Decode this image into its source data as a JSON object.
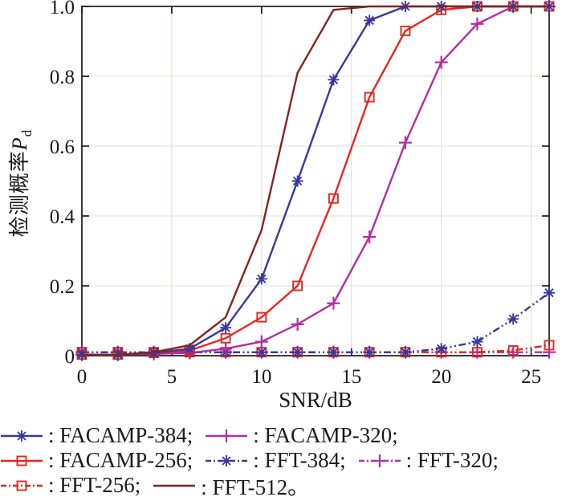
{
  "figure": {
    "xlabel": "SNR/dB",
    "ylabel": {
      "cn": "检测概率",
      "var": "P",
      "sub": "d"
    }
  },
  "chart_data": {
    "type": "line",
    "title": "",
    "xlabel": "SNR/dB",
    "ylabel": "检测概率Pd",
    "x": [
      0,
      2,
      4,
      6,
      8,
      10,
      12,
      14,
      16,
      18,
      20,
      22,
      24,
      26
    ],
    "xlim": [
      0,
      26
    ],
    "ylim": [
      0,
      1
    ],
    "xticks": [
      0,
      5,
      10,
      15,
      20,
      25
    ],
    "xtick_labels": [
      "0",
      "5",
      "10",
      "15",
      "20",
      "25"
    ],
    "yticks": [
      0,
      0.2,
      0.4,
      0.6,
      0.8,
      1
    ],
    "ytick_labels": [
      "0",
      "0.2",
      "0.4",
      "0.6",
      "0.8",
      "1.0"
    ],
    "grid": true,
    "legend_position": "below-chart",
    "colors": {
      "blue": "#38389B",
      "red": "#E6261F",
      "magenta": "#B12FA5",
      "maroon": "#83241F",
      "grid": "#E7DDDB",
      "axis": "#1a1a1a"
    },
    "series": [
      {
        "name": "FFT-320",
        "color": "#B12FA5",
        "style": "dashdot",
        "marker": "plus",
        "values": [
          0.01,
          0.01,
          0.01,
          0.01,
          0.01,
          0.01,
          0.01,
          0.01,
          0.01,
          0.01,
          0.01,
          0.01,
          0.01,
          0.01
        ]
      },
      {
        "name": "FFT-256",
        "color": "#E6261F",
        "style": "dashdot",
        "marker": "square",
        "values": [
          0.01,
          0.01,
          0.01,
          0.01,
          0.01,
          0.01,
          0.01,
          0.01,
          0.01,
          0.01,
          0.01,
          0.01,
          0.015,
          0.03
        ]
      },
      {
        "name": "FFT-384",
        "color": "#38389B",
        "style": "dashdot",
        "marker": "asterisk",
        "values": [
          0.01,
          0.01,
          0.01,
          0.01,
          0.01,
          0.01,
          0.01,
          0.01,
          0.01,
          0.01,
          0.02,
          0.04,
          0.105,
          0.18
        ]
      },
      {
        "name": "FACAMP-320",
        "color": "#B12FA5",
        "style": "solid",
        "marker": "plus",
        "values": [
          0.003,
          0.003,
          0.005,
          0.008,
          0.02,
          0.04,
          0.09,
          0.15,
          0.34,
          0.61,
          0.84,
          0.95,
          1.0,
          1.0
        ]
      },
      {
        "name": "FACAMP-256",
        "color": "#E6261F",
        "style": "solid",
        "marker": "square",
        "values": [
          0.003,
          0.003,
          0.008,
          0.015,
          0.05,
          0.11,
          0.2,
          0.45,
          0.74,
          0.93,
          0.99,
          1.0,
          1.0,
          1.0
        ]
      },
      {
        "name": "FACAMP-384",
        "color": "#38389B",
        "style": "solid",
        "marker": "asterisk",
        "values": [
          0.003,
          0.003,
          0.008,
          0.02,
          0.08,
          0.22,
          0.5,
          0.79,
          0.96,
          1.0,
          1.0,
          1.0,
          1.0,
          1.0
        ]
      },
      {
        "name": "FFT-512",
        "color": "#83241F",
        "style": "solid",
        "marker": "none",
        "values": [
          0.003,
          0.003,
          0.01,
          0.03,
          0.11,
          0.36,
          0.81,
          0.99,
          1.0,
          1.0,
          1.0,
          1.0,
          1.0,
          1.0
        ]
      }
    ]
  },
  "legend": {
    "items": [
      {
        "series": 5,
        "label": ": FACAMP-384;"
      },
      {
        "series": 3,
        "label": ": FACAMP-320;"
      },
      {
        "series": 4,
        "label": ": FACAMP-256;"
      },
      {
        "series": 2,
        "label": ": FFT-384;"
      },
      {
        "series": 0,
        "label": ": FFT-320;"
      },
      {
        "series": 1,
        "label": ": FFT-256;"
      },
      {
        "series": 6,
        "label": ": FFT-512。"
      }
    ]
  }
}
